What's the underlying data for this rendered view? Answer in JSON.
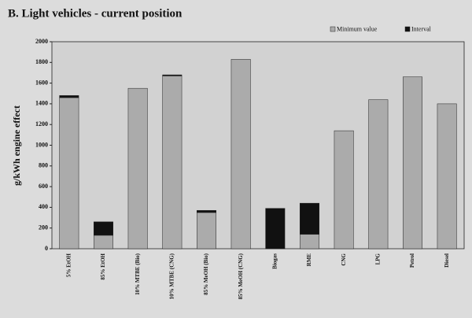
{
  "chart_data": {
    "type": "stacked_bar",
    "title": "B. Light vehicles - current position",
    "y_label": "g/kWh engine effect",
    "categories": [
      "5% EtOH",
      "85% EtOH",
      "10% MTBE (Bio)",
      "10% MTBE (CNG)",
      "85% MeOH (Bio)",
      "85% MeOH (CNG)",
      "Biogas",
      "RME",
      "CNG",
      "LPG",
      "Petrol",
      "Diesel"
    ],
    "series": [
      {
        "name": "Minimum value",
        "color": "#ababab",
        "values": [
          1460,
          130,
          1550,
          1670,
          350,
          1830,
          0,
          140,
          1140,
          1440,
          1660,
          1400
        ]
      },
      {
        "name": "Interval",
        "color": "#111111",
        "values": [
          20,
          130,
          0,
          10,
          20,
          0,
          390,
          300,
          0,
          0,
          0,
          0
        ]
      }
    ],
    "ylim": [
      0,
      2000
    ],
    "yticks": [
      0,
      200,
      400,
      600,
      800,
      1000,
      1200,
      1400,
      1600,
      1800,
      2000
    ],
    "legend": "top-right"
  }
}
